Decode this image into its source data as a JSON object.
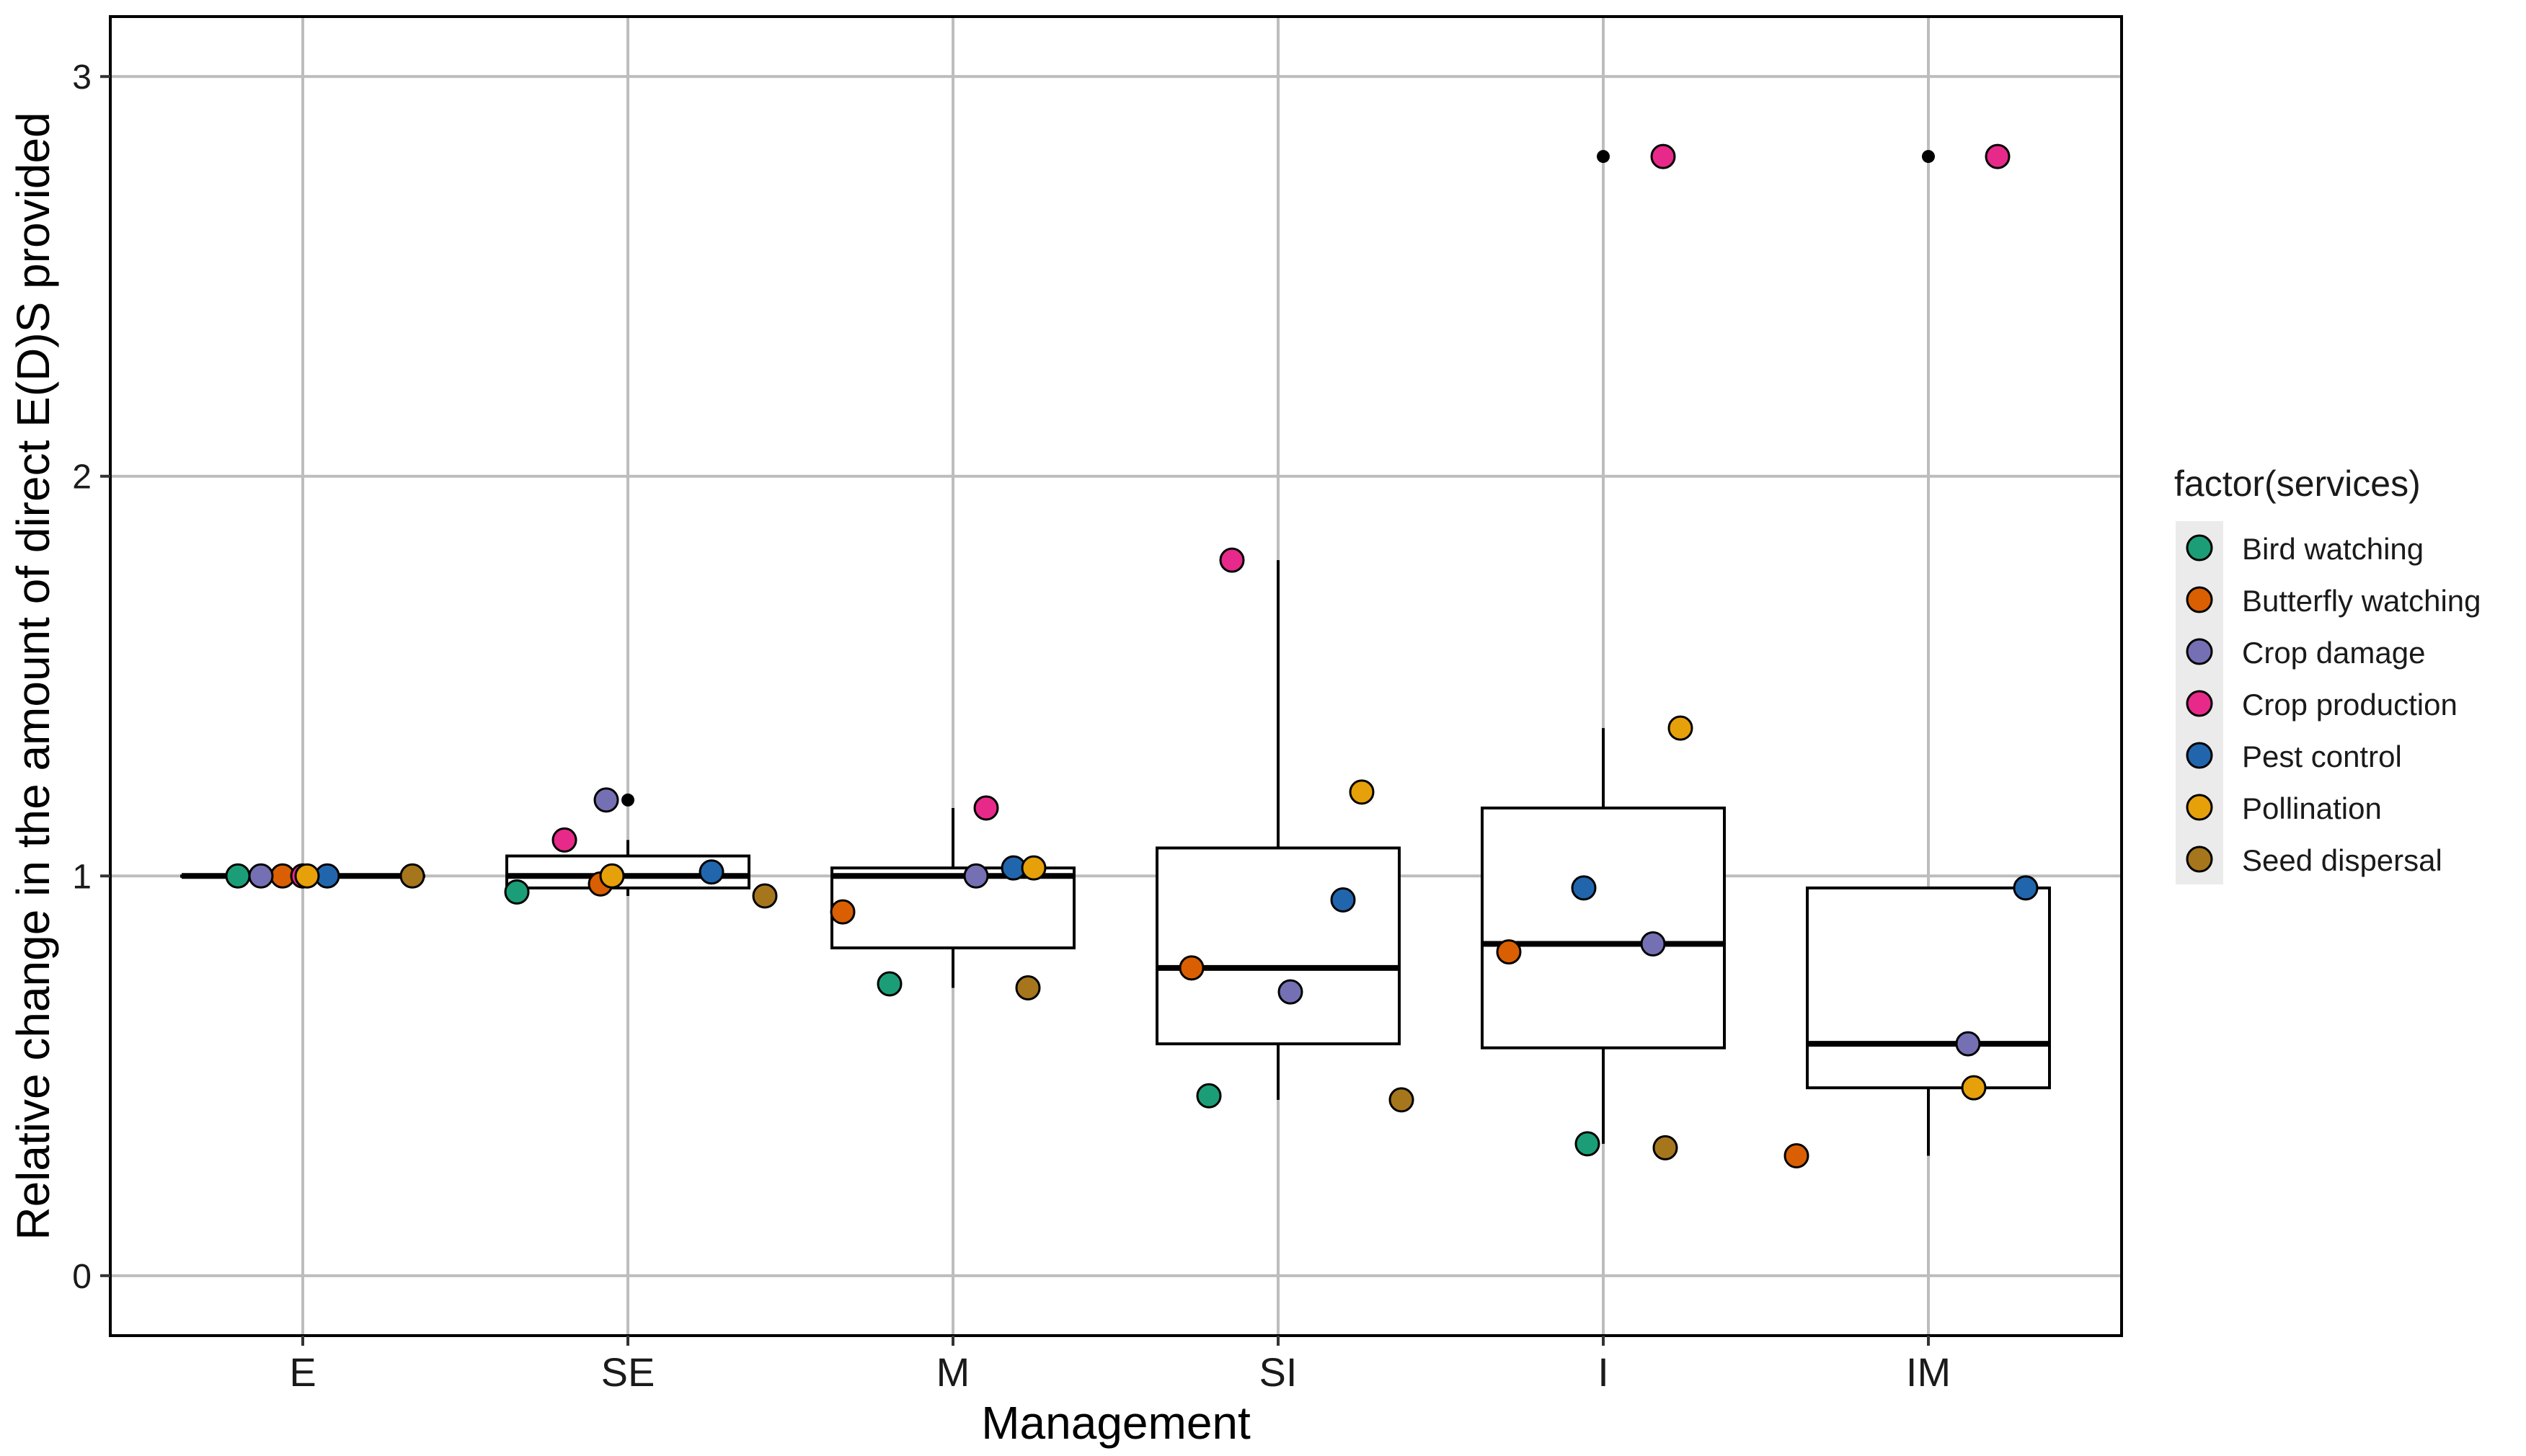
{
  "chart_data": {
    "type": "boxplot-with-points",
    "xlabel": "Management",
    "ylabel": "Relative change in the amount of direct E(D)S provided",
    "categories": [
      "E",
      "SE",
      "M",
      "SI",
      "I",
      "IM"
    ],
    "ylim": [
      -0.15,
      3.15
    ],
    "yticks": [
      0,
      1,
      2,
      3
    ],
    "grid": true,
    "legend": {
      "title": "factor(services)",
      "position": "right",
      "entries": [
        {
          "name": "Bird watching",
          "color": "#1b9e77"
        },
        {
          "name": "Butterfly watching",
          "color": "#d95f02"
        },
        {
          "name": "Crop damage",
          "color": "#7570b3"
        },
        {
          "name": "Crop production",
          "color": "#e7298a"
        },
        {
          "name": "Pest control",
          "color": "#2166ac"
        },
        {
          "name": "Pollination",
          "color": "#e6a00a"
        },
        {
          "name": "Seed dispersal",
          "color": "#a6761d"
        }
      ]
    },
    "boxes": [
      {
        "category": "E",
        "q1": 1.0,
        "median": 1.0,
        "q3": 1.0,
        "whisker_low": 1.0,
        "whisker_high": 1.0,
        "outliers": []
      },
      {
        "category": "SE",
        "q1": 0.97,
        "median": 1.0,
        "q3": 1.05,
        "whisker_low": 0.95,
        "whisker_high": 1.09,
        "outliers": [
          1.19
        ]
      },
      {
        "category": "M",
        "q1": 0.82,
        "median": 1.0,
        "q3": 1.02,
        "whisker_low": 0.72,
        "whisker_high": 1.17,
        "outliers": []
      },
      {
        "category": "SI",
        "q1": 0.58,
        "median": 0.77,
        "q3": 1.07,
        "whisker_low": 0.44,
        "whisker_high": 1.79,
        "outliers": []
      },
      {
        "category": "I",
        "q1": 0.57,
        "median": 0.83,
        "q3": 1.17,
        "whisker_low": 0.33,
        "whisker_high": 1.37,
        "outliers": [
          2.8
        ]
      },
      {
        "category": "IM",
        "q1": 0.47,
        "median": 0.58,
        "q3": 0.97,
        "whisker_low": 0.3,
        "whisker_high": 0.97,
        "outliers": [
          2.8
        ]
      }
    ],
    "series": [
      {
        "name": "Bird watching",
        "values": [
          1.0,
          0.96,
          0.73,
          0.45,
          0.33,
          null
        ]
      },
      {
        "name": "Butterfly watching",
        "values": [
          1.0,
          0.98,
          0.91,
          0.77,
          0.81,
          0.3
        ]
      },
      {
        "name": "Crop damage",
        "values": [
          1.0,
          1.19,
          1.0,
          0.71,
          0.83,
          0.58
        ]
      },
      {
        "name": "Crop production",
        "values": [
          1.0,
          1.09,
          1.17,
          1.79,
          2.8,
          2.8
        ]
      },
      {
        "name": "Pest control",
        "values": [
          1.0,
          1.01,
          1.02,
          0.94,
          0.97,
          0.97
        ]
      },
      {
        "name": "Pollination",
        "values": [
          1.0,
          1.0,
          1.02,
          1.21,
          1.37,
          0.47
        ]
      },
      {
        "name": "Seed dispersal",
        "values": [
          1.0,
          0.95,
          0.72,
          0.44,
          0.32,
          null
        ]
      }
    ]
  }
}
